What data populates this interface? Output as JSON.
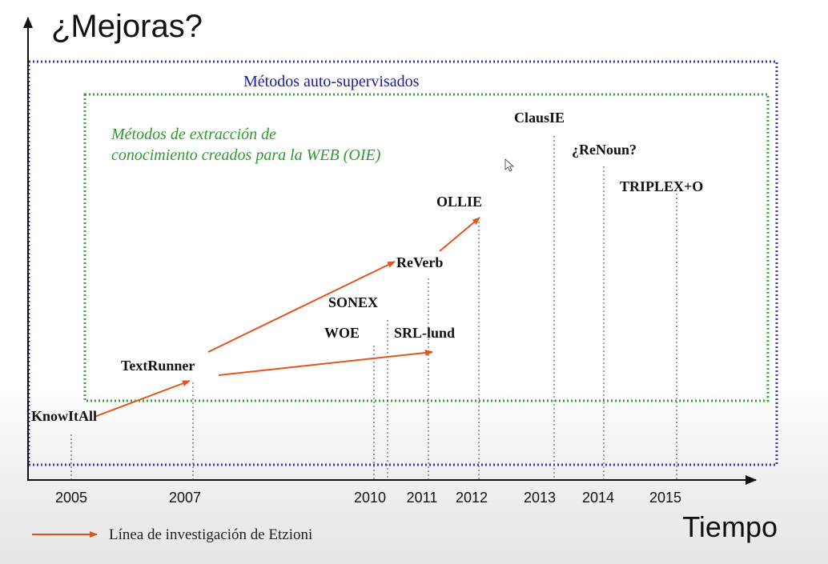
{
  "title": "¿Mejoras?",
  "x_axis_label": "Tiempo",
  "outer_box_label": "Métodos auto-supervisados",
  "inner_box_label_line1": "Métodos de extracción de",
  "inner_box_label_line2": "conocimiento creados para la WEB (OIE)",
  "years": [
    "2005",
    "2007",
    "2010",
    "2011",
    "2012",
    "2013",
    "2014",
    "2015"
  ],
  "methods": [
    {
      "name": "KnowItAll",
      "year": "2005"
    },
    {
      "name": "TextRunner",
      "year": "2007"
    },
    {
      "name": "WOE",
      "year": "2010"
    },
    {
      "name": "SONEX",
      "year": "2010"
    },
    {
      "name": "SRL-lund",
      "year": "2011"
    },
    {
      "name": "ReVerb",
      "year": "2011"
    },
    {
      "name": "OLLIE",
      "year": "2012"
    },
    {
      "name": "ClausIE",
      "year": "2013"
    },
    {
      "name": "¿ReNoun?",
      "year": "2014"
    },
    {
      "name": "TRIPLEX+O",
      "year": "2015"
    }
  ],
  "research_lines": [
    {
      "from": "KnowItAll",
      "to": "TextRunner"
    },
    {
      "from": "TextRunner",
      "to": "ReVerb"
    },
    {
      "from": "TextRunner",
      "to": "SRL-lund"
    },
    {
      "from": "ReVerb",
      "to": "OLLIE"
    }
  ],
  "legend": {
    "label": "Línea de investigación de Etzioni"
  },
  "colors": {
    "outer_box": "#3a3ab8",
    "inner_box": "#3aa63a",
    "arrow": "#e2541e",
    "text": "#111111"
  }
}
